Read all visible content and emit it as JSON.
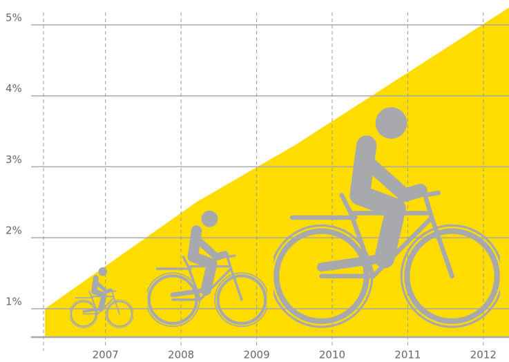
{
  "chart_data": {
    "type": "area",
    "x": [
      2006.2,
      2008.2,
      2009.5,
      2012.35
    ],
    "values": [
      1.0,
      2.5,
      3.3,
      5.25
    ],
    "color": "#ffdc00",
    "xlim": [
      2006.18,
      2012.34
    ],
    "xticks": [
      2007,
      2008,
      2009,
      2010,
      2011,
      2012
    ],
    "ylim": [
      0.6,
      5.35
    ],
    "yticks": [
      {
        "value": 1,
        "label": "1%"
      },
      {
        "value": 2,
        "label": "2%"
      },
      {
        "value": 3,
        "label": "3%"
      },
      {
        "value": 4,
        "label": "4%"
      },
      {
        "value": 5,
        "label": "5%"
      }
    ],
    "grid": true
  }
}
